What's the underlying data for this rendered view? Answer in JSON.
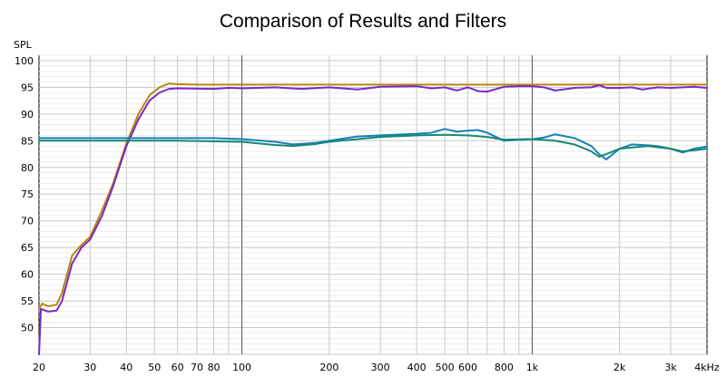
{
  "chart_data": {
    "type": "line",
    "title": "Comparison of Results and Filters",
    "ylabel": "SPL",
    "xlabel": "",
    "x_scale": "log",
    "xlim": [
      20,
      4000
    ],
    "ylim": [
      45,
      101
    ],
    "grid": true,
    "legend": "none",
    "y_ticks": [
      50,
      55,
      60,
      65,
      70,
      75,
      80,
      85,
      90,
      95,
      100
    ],
    "x_ticks": [
      {
        "value": 20,
        "label": "20"
      },
      {
        "value": 30,
        "label": "30"
      },
      {
        "value": 40,
        "label": "40"
      },
      {
        "value": 50,
        "label": "50"
      },
      {
        "value": 60,
        "label": "60"
      },
      {
        "value": 70,
        "label": "70"
      },
      {
        "value": 80,
        "label": "80"
      },
      {
        "value": 100,
        "label": "100"
      },
      {
        "value": 200,
        "label": "200"
      },
      {
        "value": 300,
        "label": "300"
      },
      {
        "value": 400,
        "label": "400"
      },
      {
        "value": 500,
        "label": "500"
      },
      {
        "value": 600,
        "label": "600"
      },
      {
        "value": 800,
        "label": "800"
      },
      {
        "value": 1000,
        "label": "1k"
      },
      {
        "value": 2000,
        "label": "2k"
      },
      {
        "value": 3000,
        "label": "3k"
      },
      {
        "value": 4000,
        "label": "4kHz"
      }
    ],
    "series": [
      {
        "color": "#b8860b",
        "x": [
          20,
          20.5,
          21.5,
          23,
          24,
          26,
          28,
          30,
          33,
          36,
          40,
          44,
          48,
          52,
          56,
          60,
          70,
          100,
          200,
          500,
          1000,
          2000,
          4000
        ],
        "values": [
          53.5,
          54.5,
          54.0,
          54.3,
          56.5,
          63.5,
          65.5,
          67.0,
          72.0,
          77.0,
          84.5,
          90.0,
          93.5,
          95.0,
          95.7,
          95.6,
          95.5,
          95.5,
          95.5,
          95.5,
          95.5,
          95.5,
          95.5
        ]
      },
      {
        "color": "#7b28c8",
        "x": [
          20,
          20.3,
          21.5,
          23,
          24,
          26,
          28,
          30,
          33,
          36,
          40,
          44,
          48,
          52,
          56,
          60,
          80,
          90,
          100,
          130,
          160,
          200,
          250,
          300,
          400,
          450,
          500,
          550,
          600,
          650,
          700,
          800,
          900,
          1000,
          1100,
          1200,
          1400,
          1600,
          1700,
          1800,
          2000,
          2200,
          2400,
          2700,
          3000,
          3300,
          3600,
          4000
        ],
        "values": [
          45.0,
          53.5,
          53.0,
          53.2,
          55.0,
          62.0,
          65.0,
          66.5,
          71.0,
          76.5,
          84.0,
          89.0,
          92.5,
          94.0,
          94.7,
          94.8,
          94.7,
          94.9,
          94.8,
          95.0,
          94.7,
          95.0,
          94.6,
          95.1,
          95.2,
          94.8,
          95.0,
          94.4,
          95.0,
          94.3,
          94.2,
          95.1,
          95.2,
          95.2,
          95.0,
          94.4,
          94.9,
          95.0,
          95.4,
          94.9,
          94.9,
          95.0,
          94.6,
          95.0,
          94.9,
          95.0,
          95.1,
          94.9
        ]
      },
      {
        "color": "#1a7fb8",
        "x": [
          20,
          50,
          80,
          100,
          130,
          150,
          180,
          200,
          250,
          300,
          400,
          450,
          500,
          550,
          600,
          650,
          700,
          800,
          900,
          1000,
          1100,
          1200,
          1400,
          1600,
          1700,
          1800,
          2000,
          2200,
          2400,
          2700,
          3000,
          3300,
          3600,
          4000
        ],
        "values": [
          85.5,
          85.5,
          85.5,
          85.3,
          84.8,
          84.3,
          84.6,
          85.0,
          85.8,
          86.0,
          86.3,
          86.5,
          87.2,
          86.7,
          86.9,
          87.0,
          86.5,
          85.0,
          85.2,
          85.3,
          85.6,
          86.2,
          85.5,
          84.0,
          82.5,
          81.5,
          83.5,
          84.3,
          84.2,
          84.0,
          83.5,
          82.8,
          83.5,
          83.9
        ]
      },
      {
        "color": "#138a72",
        "x": [
          20,
          60,
          100,
          130,
          150,
          180,
          200,
          300,
          400,
          500,
          600,
          700,
          800,
          1000,
          1200,
          1400,
          1600,
          1700,
          1800,
          2000,
          2500,
          3000,
          3300,
          3600,
          4000
        ],
        "values": [
          85.0,
          85.0,
          84.8,
          84.2,
          84.0,
          84.4,
          84.8,
          85.7,
          86.0,
          86.1,
          86.0,
          85.7,
          85.2,
          85.3,
          85.0,
          84.3,
          83.0,
          82.0,
          82.5,
          83.5,
          84.0,
          83.5,
          83.0,
          83.2,
          83.5
        ]
      }
    ]
  }
}
